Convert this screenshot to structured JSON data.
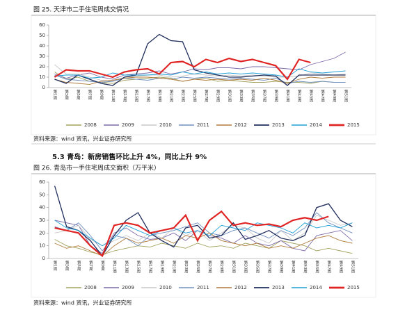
{
  "section_heading": "5.3 青岛：新房销售环比上升 4%，同比上升 9%",
  "chart_data": [
    {
      "type": "line",
      "title": "图 25.  天津市二手住宅周成交情况",
      "source": "资料来源：wind 资讯，兴业证券研究所",
      "categories": [
        "第1周",
        "第3周",
        "第5周",
        "第7周",
        "第9周",
        "第11周",
        "第13周",
        "第15周",
        "第17周",
        "第19周",
        "第21周",
        "第23周",
        "第25周",
        "第27周",
        "第29周",
        "第31周",
        "第33周",
        "第35周",
        "第37周",
        "第39周",
        "第41周",
        "第43周",
        "第45周",
        "第47周",
        "第49周",
        "第51周"
      ],
      "ylim": [
        0,
        60
      ],
      "yticks": [
        0,
        10,
        20,
        30,
        40,
        50,
        60
      ],
      "series": [
        {
          "name": "2008",
          "color": "#a3a35f",
          "values": [
            15,
            8,
            10,
            6,
            5,
            4,
            7,
            8,
            9,
            10,
            9,
            6,
            8,
            9,
            6,
            7,
            6,
            5,
            5,
            6,
            5,
            5,
            4,
            6,
            5,
            5
          ]
        },
        {
          "name": "2009",
          "color": "#7d6aa8",
          "values": [
            13,
            9,
            12,
            14,
            10,
            8,
            12,
            13,
            14,
            16,
            13,
            15,
            18,
            17,
            19,
            19,
            18,
            20,
            20,
            19,
            18,
            17,
            22,
            25,
            28,
            34
          ]
        },
        {
          "name": "2010",
          "color": "#c8c8c8",
          "values": [
            22,
            13,
            13,
            10,
            7,
            6,
            10,
            11,
            12,
            12,
            10,
            11,
            13,
            12,
            11,
            12,
            11,
            12,
            11,
            10,
            10,
            11,
            14,
            13,
            12,
            13
          ]
        },
        {
          "name": "2011",
          "color": "#6f8fbf",
          "values": [
            12,
            8,
            7,
            6,
            5,
            6,
            9,
            8,
            7,
            9,
            8,
            10,
            9,
            10,
            9,
            8,
            9,
            8,
            7,
            9,
            4,
            6,
            5,
            6,
            5,
            5
          ]
        },
        {
          "name": "2012",
          "color": "#b07a3a",
          "values": [
            8,
            5,
            4,
            3,
            6,
            7,
            9,
            10,
            10,
            9,
            8,
            6,
            8,
            7,
            8,
            7,
            8,
            7,
            9,
            7,
            4,
            8,
            10,
            9,
            10,
            10
          ]
        },
        {
          "name": "2013",
          "color": "#1f2d5c",
          "values": [
            8,
            4,
            12,
            8,
            4,
            2,
            10,
            12,
            42,
            51,
            45,
            44,
            17,
            14,
            12,
            10,
            10,
            11,
            12,
            11,
            2,
            12,
            12,
            12,
            12,
            12
          ]
        },
        {
          "name": "2014",
          "color": "#1e9fd6",
          "values": [
            11,
            12,
            12,
            9,
            10,
            14,
            12,
            12,
            12,
            13,
            12,
            15,
            13,
            15,
            13,
            14,
            13,
            14,
            13,
            12,
            10,
            18,
            15,
            14,
            15,
            16
          ]
        },
        {
          "name": "2015",
          "color": "#e02424",
          "values": [
            10,
            17,
            16,
            16,
            13,
            10,
            15,
            17,
            18,
            13,
            24,
            25,
            20,
            27,
            24,
            28,
            25,
            27,
            24,
            21,
            8,
            27,
            24,
            null,
            null,
            null
          ]
        }
      ]
    },
    {
      "type": "line",
      "title": "图 26.  青岛市一手住宅周成交面积（万平米）",
      "source": "资料来源：wind 资讯，兴业证券研究所",
      "categories": [
        "第1周",
        "第3周",
        "第5周",
        "第7周",
        "第9周",
        "第11周",
        "第13周",
        "第15周",
        "第17周",
        "第19周",
        "第21周",
        "第23周",
        "第25周",
        "第27周",
        "第29周",
        "第31周",
        "第33周",
        "第35周",
        "第37周",
        "第39周",
        "第41周",
        "第43周",
        "第45周",
        "第47周",
        "第49周",
        "第51周"
      ],
      "ylim": [
        0,
        60
      ],
      "yticks": [
        0,
        10,
        20,
        30,
        40,
        50,
        60
      ],
      "series": [
        {
          "name": "2008",
          "color": "#a3a35f",
          "values": [
            15,
            10,
            8,
            5,
            3,
            6,
            8,
            10,
            9,
            12,
            10,
            8,
            12,
            9,
            10,
            8,
            12,
            10,
            8,
            14,
            12,
            10,
            6,
            8,
            6,
            4
          ]
        },
        {
          "name": "2009",
          "color": "#7d6aa8",
          "values": [
            30,
            28,
            26,
            10,
            4,
            20,
            24,
            18,
            15,
            16,
            20,
            14,
            22,
            18,
            16,
            12,
            18,
            12,
            10,
            14,
            8,
            6,
            18,
            20,
            22,
            14
          ]
        },
        {
          "name": "2010",
          "color": "#c8c8c8",
          "values": [
            20,
            22,
            26,
            15,
            10,
            14,
            18,
            14,
            20,
            16,
            24,
            18,
            22,
            14,
            20,
            26,
            24,
            16,
            12,
            22,
            14,
            20,
            34,
            30,
            26,
            28
          ]
        },
        {
          "name": "2011",
          "color": "#6f8fbf",
          "values": [
            25,
            22,
            28,
            18,
            6,
            18,
            16,
            10,
            18,
            20,
            22,
            25,
            28,
            20,
            18,
            22,
            24,
            20,
            16,
            22,
            18,
            24,
            36,
            28,
            24,
            20
          ]
        },
        {
          "name": "2012",
          "color": "#b07a3a",
          "values": [
            12,
            8,
            10,
            6,
            2,
            10,
            16,
            12,
            14,
            16,
            12,
            18,
            16,
            20,
            14,
            12,
            10,
            12,
            8,
            10,
            8,
            12,
            16,
            18,
            14,
            12
          ]
        },
        {
          "name": "2013",
          "color": "#1f2d5c",
          "values": [
            57,
            25,
            22,
            14,
            2,
            18,
            30,
            36,
            20,
            14,
            9,
            24,
            26,
            16,
            18,
            28,
            15,
            18,
            22,
            16,
            14,
            18,
            40,
            43,
            30,
            25
          ]
        },
        {
          "name": "2014",
          "color": "#1e9fd6",
          "values": [
            30,
            24,
            22,
            16,
            10,
            16,
            26,
            22,
            18,
            22,
            24,
            20,
            22,
            18,
            26,
            24,
            22,
            28,
            26,
            24,
            20,
            28,
            24,
            26,
            24,
            28
          ]
        },
        {
          "name": "2015",
          "color": "#e02424",
          "values": [
            24,
            22,
            20,
            10,
            2,
            26,
            28,
            26,
            20,
            22,
            24,
            34,
            14,
            30,
            37,
            26,
            28,
            26,
            27,
            25,
            30,
            32,
            30,
            33,
            null,
            null
          ]
        }
      ]
    }
  ]
}
